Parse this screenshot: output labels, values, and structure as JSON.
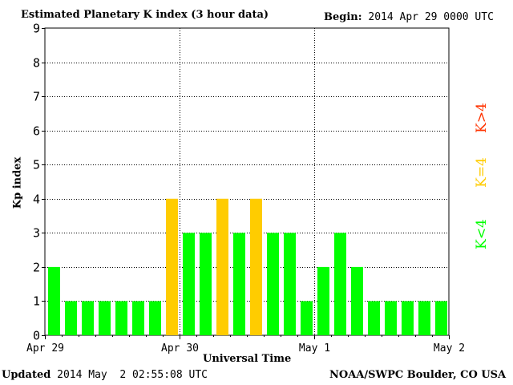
{
  "header": {
    "title": "Estimated Planetary K index (3 hour data)",
    "begin_label": "Begin:",
    "begin_value": "2014 Apr 29 0000 UTC"
  },
  "footer": {
    "updated_label": "Updated",
    "updated_value": "2014 May  2 02:55:08 UTC",
    "credit": "NOAA/SWPC Boulder, CO USA"
  },
  "legend": {
    "above": "K>4",
    "equal": "K=4",
    "below": "K<4"
  },
  "colors": {
    "below": "#00ff00",
    "equal": "#ffcc00",
    "above": "#ff3300"
  },
  "chart_data": {
    "type": "bar",
    "title": "Estimated Planetary K index (3 hour data)",
    "xlabel": "Universal Time",
    "ylabel": "Kp index",
    "ylim": [
      0,
      9
    ],
    "yticks": [
      "0",
      "1",
      "2",
      "3",
      "4",
      "5",
      "6",
      "7",
      "8",
      "9"
    ],
    "xticks": [
      "Apr 29",
      "Apr 30",
      "May 1",
      "May 2"
    ],
    "grid": true,
    "values": [
      2,
      1,
      1,
      1,
      1,
      1,
      1,
      4,
      3,
      3,
      4,
      3,
      4,
      3,
      3,
      1,
      2,
      3,
      2,
      1,
      1,
      1,
      1,
      1
    ]
  }
}
